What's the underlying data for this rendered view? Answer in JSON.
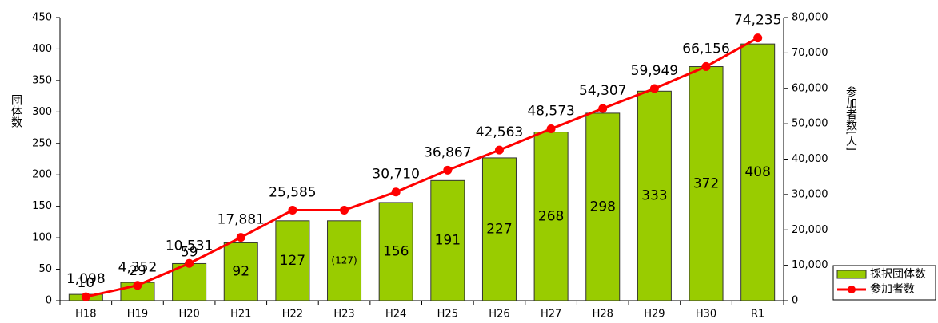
{
  "chart_data": {
    "type": "bar_line",
    "categories": [
      "H18",
      "H19",
      "H20",
      "H21",
      "H22",
      "H23",
      "H24",
      "H25",
      "H26",
      "H27",
      "H28",
      "H29",
      "H30",
      "R1"
    ],
    "ylabel": "団体数",
    "y2label": "参加者数[人]",
    "ylim": [
      0,
      450
    ],
    "yticks": [
      0,
      50,
      100,
      150,
      200,
      250,
      300,
      350,
      400,
      450
    ],
    "y2lim": [
      0,
      80000
    ],
    "y2ticks": [
      0,
      {
        "value": 10000,
        "label": "10,000"
      },
      {
        "value": 20000,
        "label": "20,000"
      },
      {
        "value": 30000,
        "label": "30,000"
      },
      {
        "value": 40000,
        "label": "40,000"
      },
      {
        "value": 50000,
        "label": "50,000"
      },
      {
        "value": 60000,
        "label": "60,000"
      },
      {
        "value": 70000,
        "label": "70,000"
      },
      {
        "value": 80000,
        "label": "80,000"
      }
    ],
    "series": [
      {
        "name": "採択団体数",
        "type": "bar",
        "color": "#99cc00",
        "values": [
          10,
          29,
          59,
          92,
          127,
          127,
          156,
          191,
          227,
          268,
          298,
          333,
          372,
          408
        ],
        "value_labels": [
          "10",
          "29",
          "59",
          "92",
          "127",
          "(127)",
          "156",
          "191",
          "227",
          "268",
          "298",
          "333",
          "372",
          "408"
        ]
      },
      {
        "name": "参加者数",
        "type": "line",
        "axis": "y2",
        "color": "#ff0000",
        "values": [
          1098,
          4352,
          10531,
          17881,
          25585,
          25585,
          30710,
          36867,
          42563,
          48573,
          54307,
          59949,
          66156,
          74235
        ],
        "value_labels": [
          "1,098",
          "4,352",
          "10,531",
          "17,881",
          "25,585",
          null,
          "30,710",
          "36,867",
          "42,563",
          "48,573",
          "54,307",
          "59,949",
          "66,156",
          "74,235"
        ]
      }
    ]
  }
}
